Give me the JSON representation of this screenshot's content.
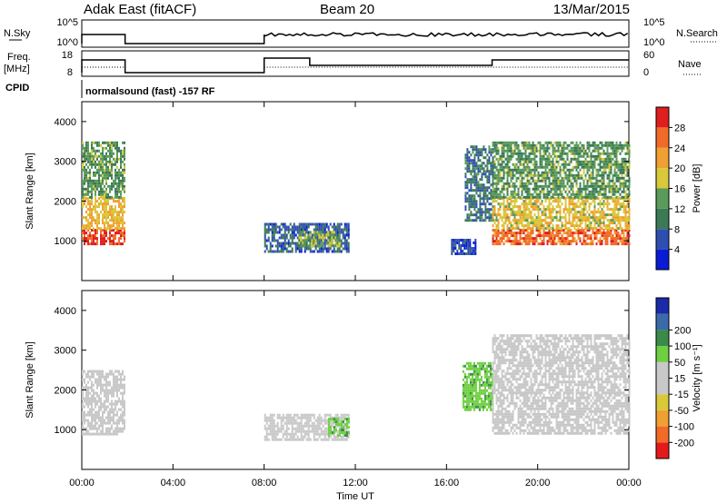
{
  "header": {
    "station": "Adak East (fitACF)",
    "beam": "Beam 20",
    "date": "13/Mar/2015"
  },
  "strip_labels": {
    "nsky": "N.Sky",
    "nsky_ticks": [
      "10^5",
      "10^0"
    ],
    "nsearch": "N.Search",
    "nsearch_ticks": [
      "10^5",
      "10^0"
    ],
    "freq": "Freq.",
    "freq_unit": "[MHz]",
    "freq_ticks": [
      "18",
      "8"
    ],
    "nave": "Nave",
    "nave_ticks": [
      "60",
      "0"
    ],
    "cpid": "CPID",
    "cpid_text": "normalsound (fast) -157 RF"
  },
  "colors": {
    "power_scale": [
      "#0a1bd6",
      "#2e4fb0",
      "#3b7a55",
      "#5a9a5a",
      "#d8c83a",
      "#f0a032",
      "#f06a28",
      "#e01e1e"
    ],
    "velocity_scale": [
      "#e41a1a",
      "#f06a28",
      "#f0a032",
      "#d8c83a",
      "#c8c8c8",
      "#c8c8c8",
      "#6ed040",
      "#3b8a4a",
      "#3a6aa8",
      "#1a2aa8"
    ]
  },
  "chart_data": [
    {
      "type": "heatmap",
      "title": "Power",
      "ylabel": "Slant Range [km]",
      "ylim": [
        0,
        4500
      ],
      "yticks": [
        1000,
        2000,
        3000,
        4000
      ],
      "xlim_hours": [
        0,
        24
      ],
      "xticks": [
        "00:00",
        "04:00",
        "08:00",
        "12:00",
        "16:00",
        "20:00",
        "00:00"
      ],
      "colorbar_label": "Power [dB]",
      "colorbar_ticks": [
        4,
        8,
        12,
        16,
        20,
        24,
        28
      ],
      "colorbar_range": [
        0,
        32
      ],
      "regions": [
        {
          "t": [
            0.0,
            1.9
          ],
          "r": [
            900,
            1300
          ],
          "value": 28
        },
        {
          "t": [
            0.0,
            1.9
          ],
          "r": [
            1300,
            2100
          ],
          "value": 20
        },
        {
          "t": [
            0.0,
            1.9
          ],
          "r": [
            2100,
            3500
          ],
          "value": 13
        },
        {
          "t": [
            8.0,
            11.7
          ],
          "r": [
            750,
            1450
          ],
          "value": 7
        },
        {
          "t": [
            9.5,
            11.3
          ],
          "r": [
            850,
            1250
          ],
          "value": 15
        },
        {
          "t": [
            16.2,
            17.3
          ],
          "r": [
            650,
            1050
          ],
          "value": 5
        },
        {
          "t": [
            16.8,
            18.0
          ],
          "r": [
            1500,
            3400
          ],
          "value": 9
        },
        {
          "t": [
            18.0,
            24.0
          ],
          "r": [
            900,
            1300
          ],
          "value": 26
        },
        {
          "t": [
            18.0,
            24.0
          ],
          "r": [
            1300,
            2100
          ],
          "value": 19
        },
        {
          "t": [
            18.0,
            24.0
          ],
          "r": [
            2100,
            3500
          ],
          "value": 13
        }
      ]
    },
    {
      "type": "heatmap",
      "title": "Velocity",
      "ylabel": "Slant Range [km]",
      "ylim": [
        0,
        4500
      ],
      "yticks": [
        1000,
        2000,
        3000,
        4000
      ],
      "xlim_hours": [
        0,
        24
      ],
      "xticks": [
        "00:00",
        "04:00",
        "08:00",
        "12:00",
        "16:00",
        "20:00",
        "00:00"
      ],
      "xlabel": "Time UT",
      "colorbar_label": "Velocity [m s⁻¹]",
      "colorbar_ticks": [
        "-200",
        "-100",
        "-50",
        "-15",
        "15",
        "50",
        "100",
        "200"
      ],
      "regions": [
        {
          "t": [
            0.0,
            1.9
          ],
          "r": [
            900,
            2500
          ],
          "value": 0
        },
        {
          "t": [
            8.0,
            11.7
          ],
          "r": [
            750,
            1400
          ],
          "value": 0
        },
        {
          "t": [
            10.8,
            11.7
          ],
          "r": [
            850,
            1300
          ],
          "value": 40
        },
        {
          "t": [
            16.7,
            18.0
          ],
          "r": [
            1500,
            2700
          ],
          "value": 40
        },
        {
          "t": [
            18.0,
            24.0
          ],
          "r": [
            900,
            1900
          ],
          "value": 0
        },
        {
          "t": [
            18.0,
            24.0
          ],
          "r": [
            1900,
            3400
          ],
          "value": 0
        }
      ]
    }
  ]
}
